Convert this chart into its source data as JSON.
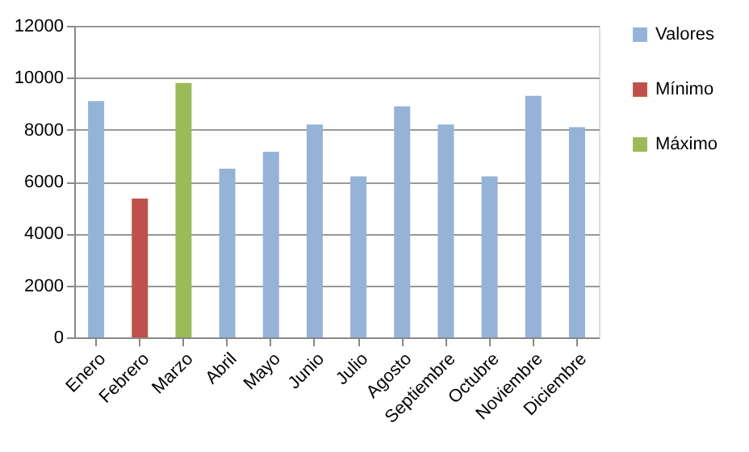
{
  "chart_data": {
    "type": "bar",
    "categories": [
      "Enero",
      "Febrero",
      "Marzo",
      "Abril",
      "Mayo",
      "Junio",
      "Julio",
      "Agosto",
      "Septiembre",
      "Octubre",
      "Noviembre",
      "Diciembre"
    ],
    "series": [
      {
        "name": "Valores",
        "color": "#95b3d7",
        "values": [
          9100,
          null,
          null,
          6500,
          7150,
          8200,
          6200,
          8900,
          8200,
          6200,
          9300,
          8100
        ]
      },
      {
        "name": "Mínimo",
        "color": "#c0504d",
        "values": [
          null,
          5350,
          null,
          null,
          null,
          null,
          null,
          null,
          null,
          null,
          null,
          null
        ]
      },
      {
        "name": "Máximo",
        "color": "#9bbb59",
        "values": [
          null,
          null,
          9800,
          null,
          null,
          null,
          null,
          null,
          null,
          null,
          null,
          null
        ]
      }
    ],
    "ylim": [
      0,
      12000
    ],
    "yticks": [
      0,
      2000,
      4000,
      6000,
      8000,
      10000,
      12000
    ],
    "grid": "y",
    "legend": "right"
  }
}
